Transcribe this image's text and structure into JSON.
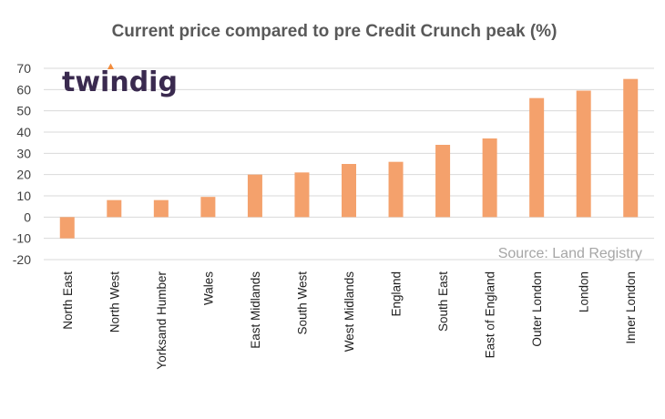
{
  "chart_data": {
    "type": "bar",
    "title": "Current price compared to pre Credit Crunch peak (%)",
    "xlabel": "",
    "ylabel": "",
    "categories": [
      "North East",
      "North West",
      "Yorksand Humber",
      "Wales",
      "East Midlands",
      "South West",
      "West Midlands",
      "England",
      "South East",
      "East of England",
      "Outer London",
      "London",
      "Inner London"
    ],
    "values": [
      -10,
      8,
      8,
      9.5,
      20,
      21,
      25,
      26,
      34,
      37,
      56,
      59.5,
      65
    ],
    "ylim": [
      -20,
      70
    ],
    "yticks": [
      70,
      60,
      50,
      40,
      30,
      20,
      10,
      0,
      -10,
      -20
    ],
    "grid": true,
    "bar_color": "#f4a16c",
    "source_note": "Source: Land Registry"
  },
  "logo": {
    "text": "twindig",
    "text_color": "#3a2a4f",
    "accent_color": "#f28c3c"
  }
}
